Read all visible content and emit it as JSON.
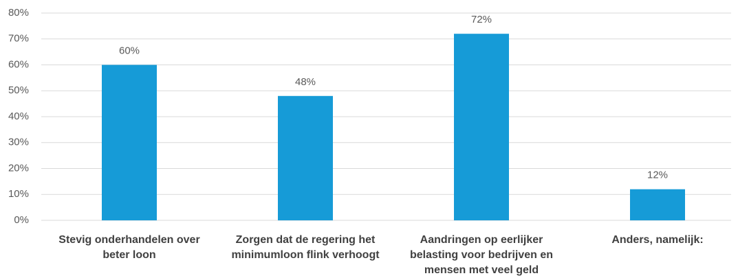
{
  "chart_data": {
    "type": "bar",
    "categories": [
      "Stevig onderhandelen over beter loon",
      "Zorgen dat de regering het minimumloon flink verhoogt",
      "Aandringen op eerlijker belasting voor bedrijven en mensen met veel geld",
      "Anders, namelijk:"
    ],
    "values": [
      60,
      48,
      72,
      12
    ],
    "value_labels": [
      "60%",
      "48%",
      "72%",
      "12%"
    ],
    "color": "#169bd7",
    "ylim": [
      0,
      80
    ],
    "yticks": [
      {
        "value": 0,
        "label": "0%"
      },
      {
        "value": 10,
        "label": "10%"
      },
      {
        "value": 20,
        "label": "20%"
      },
      {
        "value": 30,
        "label": "30%"
      },
      {
        "value": 40,
        "label": "40%"
      },
      {
        "value": 50,
        "label": "50%"
      },
      {
        "value": 60,
        "label": "60%"
      },
      {
        "value": 70,
        "label": "70%"
      },
      {
        "value": 80,
        "label": "80%"
      }
    ],
    "grid": true
  }
}
